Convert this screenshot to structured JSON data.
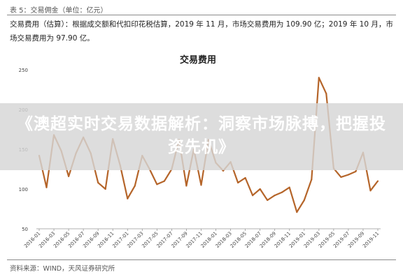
{
  "header": {
    "table_label": "表 5：交易佣金（单位：亿元）",
    "description": "交易费用（估算）：根据成交额和代扣印花税估算，2019 年 11 月，市场交易费用为 109.90 亿；2019 年 10 月，市场交易费用为 97.90 亿。"
  },
  "source": "资料来源：WIND，天风证券研究所",
  "overlay": {
    "text": "《澳超实时交易数据解析：洞察市场脉搏，把握投资先机》"
  },
  "colors": {
    "line": "#b5652a",
    "overlay": "#d6d6d6"
  },
  "chart_data": {
    "type": "line",
    "title": "交易费用",
    "xlabel": "",
    "ylabel": "",
    "ylim": [
      50,
      250
    ],
    "yticks": [
      50,
      100,
      150,
      200,
      250
    ],
    "grid": false,
    "legend": "none",
    "x": [
      "2016-01",
      "2016-02",
      "2016-03",
      "2016-04",
      "2016-05",
      "2016-06",
      "2016-07",
      "2016-08",
      "2016-09",
      "2016-10",
      "2016-11",
      "2016-12",
      "2017-01",
      "2017-02",
      "2017-03",
      "2017-04",
      "2017-05",
      "2017-06",
      "2017-07",
      "2017-08",
      "2017-09",
      "2017-10",
      "2017-11",
      "2017-12",
      "2018-01",
      "2018-02",
      "2018-03",
      "2018-04",
      "2018-05",
      "2018-06",
      "2018-07",
      "2018-08",
      "2018-09",
      "2018-10",
      "2018-11",
      "2018-12",
      "2019-01",
      "2019-02",
      "2019-03",
      "2019-04",
      "2019-05",
      "2019-06",
      "2019-07",
      "2019-08",
      "2019-09",
      "2019-10",
      "2019-11"
    ],
    "xticks": [
      "2016-01",
      "2016-03",
      "2016-05",
      "2016-07",
      "2016-09",
      "2016-11",
      "2017-01",
      "2017-03",
      "2017-05",
      "2017-07",
      "2017-09",
      "2017-11",
      "2018-01",
      "2018-03",
      "2018-05",
      "2018-07",
      "2018-09",
      "2018-11",
      "2019-01",
      "2019-03",
      "2019-05",
      "2019-07",
      "2019-09",
      "2019-11"
    ],
    "series": [
      {
        "values": [
          142,
          102,
          168,
          148,
          116,
          145,
          165,
          145,
          108,
          100,
          163,
          130,
          88,
          104,
          142,
          125,
          106,
          110,
          125,
          162,
          104,
          150,
          105,
          162,
          133,
          123,
          134,
          108,
          114,
          92,
          100,
          86,
          92,
          96,
          102,
          71,
          86,
          112,
          240,
          220,
          126,
          115,
          118,
          122,
          146,
          98,
          110
        ]
      }
    ]
  }
}
